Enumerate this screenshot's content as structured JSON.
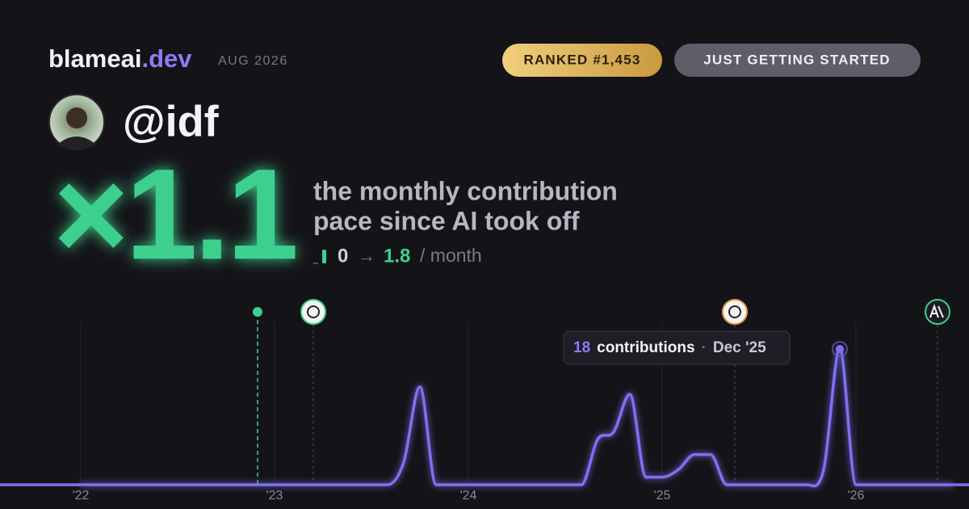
{
  "header": {
    "brand": "blameai",
    "brand_suffix": ".dev",
    "date": "AUG 2026",
    "rank_badge": "RANKED #1,453",
    "status_badge": "JUST GETTING STARTED",
    "username": "@idf"
  },
  "headline": {
    "multiplier": "×1.1",
    "description_line1": "the monthly contribution",
    "description_line2": "pace since AI took off",
    "before": "0",
    "arrow": "→",
    "after": "1.8",
    "unit": "/ month"
  },
  "chart_data": {
    "type": "line",
    "categories": [
      "'22",
      null,
      null,
      null,
      null,
      null,
      null,
      null,
      null,
      null,
      null,
      null,
      "'23",
      null,
      null,
      null,
      null,
      null,
      null,
      null,
      null,
      null,
      null,
      null,
      "'24",
      null,
      null,
      null,
      null,
      null,
      null,
      null,
      null,
      null,
      null,
      null,
      "'25",
      null,
      null,
      null,
      null,
      null,
      null,
      null,
      null,
      null,
      null,
      null,
      "'26",
      null,
      null,
      null,
      null,
      null,
      null
    ],
    "series": [
      {
        "color": "#7f6ff2",
        "values": [
          0,
          0,
          0,
          0,
          0,
          0,
          0,
          0,
          0,
          0,
          0,
          0,
          0,
          0,
          0,
          0,
          0,
          0,
          0,
          0,
          3,
          13,
          0,
          0,
          0,
          0,
          0,
          0,
          0,
          0,
          0,
          0,
          6,
          7,
          12,
          1,
          1,
          2,
          4,
          4,
          0,
          0,
          0,
          0,
          0,
          0,
          2,
          18,
          0,
          0,
          0,
          0,
          0,
          0,
          0
        ]
      }
    ],
    "ylim": [
      0,
      18
    ],
    "grid": true,
    "tooltip": {
      "value": 18,
      "label": "contributions",
      "separator": "·",
      "date": "Dec '25"
    }
  }
}
